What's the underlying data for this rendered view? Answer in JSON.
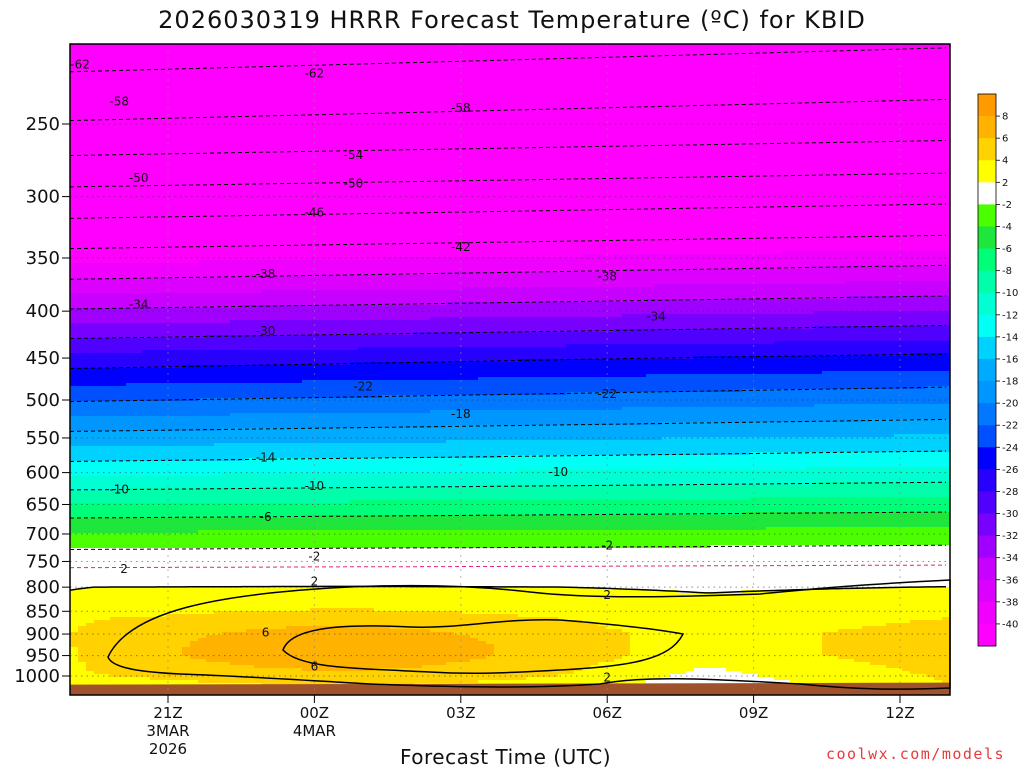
{
  "title": "2026030319 HRRR Forecast Temperature (ºC) for KBID",
  "xlabel": "Forecast Time (UTC)",
  "credit": "coolwx.com/models",
  "chart_data": {
    "type": "heatmap",
    "title": "2026030319 HRRR Forecast Temperature (ºC) for KBID",
    "xlabel": "Forecast Time (UTC)",
    "ylabel": "",
    "y_scale": "log-pressure",
    "y_axis_inverted": true,
    "x_ticks": [
      {
        "label": "21Z",
        "sub": [
          "3MAR",
          "2026"
        ]
      },
      {
        "label": "00Z",
        "sub": [
          "4MAR"
        ]
      },
      {
        "label": "03Z",
        "sub": []
      },
      {
        "label": "06Z",
        "sub": []
      },
      {
        "label": "09Z",
        "sub": []
      },
      {
        "label": "12Z",
        "sub": []
      }
    ],
    "y_ticks": [
      250,
      300,
      350,
      400,
      450,
      500,
      550,
      600,
      650,
      700,
      750,
      800,
      850,
      900,
      950,
      1000
    ],
    "colorbar_ticks": [
      8,
      6,
      4,
      2,
      -2,
      -4,
      -6,
      -8,
      -10,
      -12,
      -14,
      -16,
      -18,
      -20,
      -22,
      -24,
      -26,
      -28,
      -30,
      -32,
      -34,
      -36,
      -38,
      -40
    ],
    "color_levels": [
      {
        "min": 8,
        "max": 10,
        "color": "#ff9a00"
      },
      {
        "min": 6,
        "max": 8,
        "color": "#ffb200"
      },
      {
        "min": 4,
        "max": 6,
        "color": "#ffd200"
      },
      {
        "min": 2,
        "max": 4,
        "color": "#ffff00"
      },
      {
        "min": -2,
        "max": 2,
        "color": "#ffffff"
      },
      {
        "min": -4,
        "max": -2,
        "color": "#4cff00"
      },
      {
        "min": -6,
        "max": -4,
        "color": "#1ee63c"
      },
      {
        "min": -8,
        "max": -6,
        "color": "#00ff78"
      },
      {
        "min": -10,
        "max": -8,
        "color": "#00ffaa"
      },
      {
        "min": -12,
        "max": -10,
        "color": "#00ffd2"
      },
      {
        "min": -14,
        "max": -12,
        "color": "#00fff5"
      },
      {
        "min": -16,
        "max": -14,
        "color": "#00d2ff"
      },
      {
        "min": -18,
        "max": -16,
        "color": "#00aaff"
      },
      {
        "min": -20,
        "max": -18,
        "color": "#0096ff"
      },
      {
        "min": -22,
        "max": -20,
        "color": "#0078ff"
      },
      {
        "min": -24,
        "max": -22,
        "color": "#0050ff"
      },
      {
        "min": -26,
        "max": -24,
        "color": "#0000ff"
      },
      {
        "min": -28,
        "max": -26,
        "color": "#2800ff"
      },
      {
        "min": -30,
        "max": -28,
        "color": "#5000ff"
      },
      {
        "min": -32,
        "max": -30,
        "color": "#7800ff"
      },
      {
        "min": -34,
        "max": -32,
        "color": "#a000ff"
      },
      {
        "min": -36,
        "max": -34,
        "color": "#c800ff"
      },
      {
        "min": -38,
        "max": -36,
        "color": "#dc00ff"
      },
      {
        "min": -40,
        "max": -38,
        "color": "#f000ff"
      },
      {
        "min": -60,
        "max": -40,
        "color": "#ff00ff"
      }
    ],
    "contour_labels": [
      {
        "text": "-62",
        "p": 215,
        "t": -1.8
      },
      {
        "text": "-62",
        "p": 220,
        "t": 3.0
      },
      {
        "text": "-58",
        "p": 236,
        "t": -1.0
      },
      {
        "text": "-58",
        "p": 240,
        "t": 6.0
      },
      {
        "text": "-54",
        "p": 270,
        "t": 3.8
      },
      {
        "text": "-50",
        "p": 286,
        "t": -0.6
      },
      {
        "text": "-50",
        "p": 290,
        "t": 3.8
      },
      {
        "text": "-46",
        "p": 312,
        "t": 3.0
      },
      {
        "text": "-42",
        "p": 340,
        "t": 6.0
      },
      {
        "text": "-38",
        "p": 364,
        "t": 2.0
      },
      {
        "text": "-38",
        "p": 366,
        "t": 9.0
      },
      {
        "text": "-34",
        "p": 393,
        "t": -0.6
      },
      {
        "text": "-34",
        "p": 405,
        "t": 10.0
      },
      {
        "text": "-30",
        "p": 420,
        "t": 2.0
      },
      {
        "text": "-22",
        "p": 483,
        "t": 4.0
      },
      {
        "text": "-22",
        "p": 492,
        "t": 9.0
      },
      {
        "text": "-18",
        "p": 517,
        "t": 6.0
      },
      {
        "text": "-14",
        "p": 577,
        "t": 2.0
      },
      {
        "text": "-10",
        "p": 625,
        "t": -1.0
      },
      {
        "text": "-10",
        "p": 620,
        "t": 3.0
      },
      {
        "text": "-10",
        "p": 598,
        "t": 8.0
      },
      {
        "text": "-6",
        "p": 670,
        "t": 2.0
      },
      {
        "text": "-2",
        "p": 740,
        "t": 3.0
      },
      {
        "text": "-2",
        "p": 720,
        "t": 9.0
      },
      {
        "text": "2",
        "p": 763,
        "t": -0.9
      },
      {
        "text": "2",
        "p": 788,
        "t": 3.0
      },
      {
        "text": "2",
        "p": 815,
        "t": 9.0
      },
      {
        "text": "2",
        "p": 1003,
        "t": 9.0
      },
      {
        "text": "6",
        "p": 895,
        "t": 2.0
      },
      {
        "text": "6",
        "p": 975,
        "t": 3.0
      }
    ],
    "colors": {
      "ground": "#a0522d",
      "contour_dashed": "#000000",
      "contour_solid": "#000000",
      "freezing_line": "#e0247a"
    }
  }
}
